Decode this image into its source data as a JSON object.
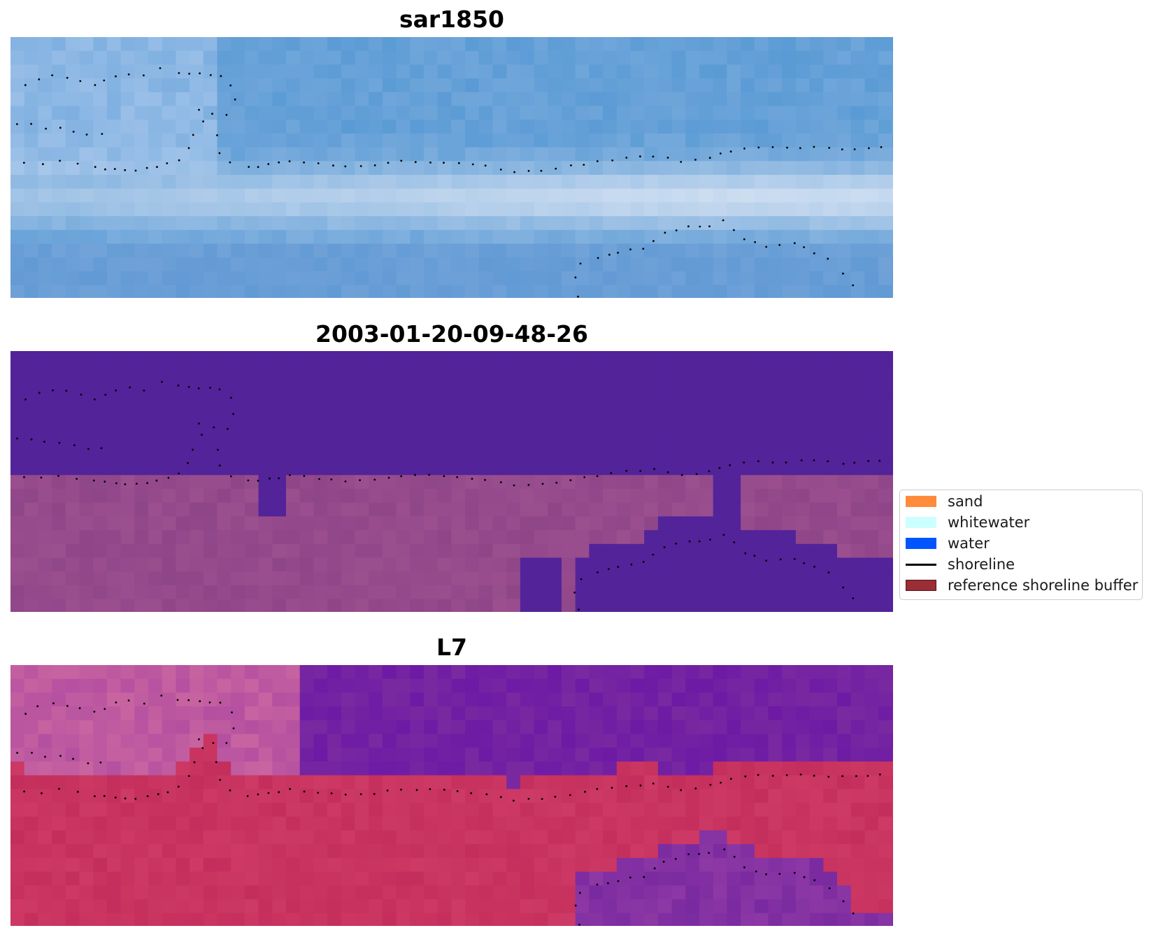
{
  "panels": [
    {
      "id": "rgb",
      "title": "sar1850"
    },
    {
      "id": "classified",
      "title": "2003-01-20-09-48-26"
    },
    {
      "id": "index",
      "title": "L7"
    }
  ],
  "legend": {
    "items": [
      {
        "label": "sand",
        "color": "#ff8c3a",
        "kind": "patch"
      },
      {
        "label": "whitewater",
        "color": "#ccffff",
        "kind": "patch"
      },
      {
        "label": "water",
        "color": "#0055ff",
        "kind": "patch"
      },
      {
        "label": "shoreline",
        "color": "#000000",
        "kind": "line"
      },
      {
        "label": "reference shoreline buffer",
        "color": "#9b2d35",
        "kind": "patch"
      }
    ]
  },
  "colors": {
    "rgb_base": "#5b9bd5",
    "rgb_surf": "#dfe8f5",
    "class_water": "#53239a",
    "class_land": "#9b4f8f",
    "index_water": "#7a2aa0",
    "index_land": "#c42e5c",
    "shoreline_dot": "#000000"
  }
}
